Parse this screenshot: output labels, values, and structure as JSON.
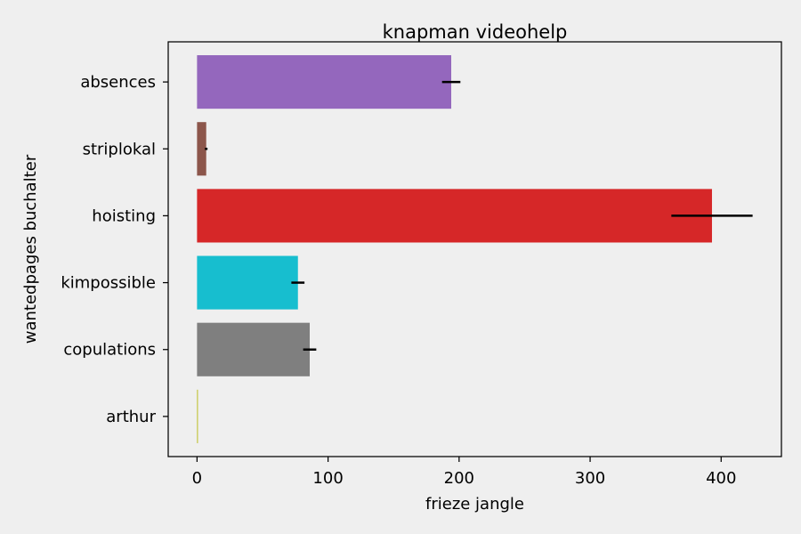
{
  "chart_data": {
    "type": "bar",
    "orientation": "horizontal",
    "title": "knapman videohelp",
    "xlabel": "frieze jangle",
    "ylabel": "wantedpages buchalter",
    "xlim": [
      -22,
      446
    ],
    "xticks": [
      0,
      100,
      200,
      300,
      400
    ],
    "categories": [
      "absences",
      "striplokal",
      "hoisting",
      "kimpossible",
      "copulations",
      "arthur"
    ],
    "values": [
      194,
      7,
      393,
      77,
      86,
      0.4
    ],
    "error": [
      7,
      1,
      31,
      5,
      5,
      0
    ],
    "colors": [
      "#9467bd",
      "#8c564b",
      "#d62728",
      "#17becf",
      "#7f7f7f",
      "#bcbd22"
    ],
    "grid": false
  }
}
